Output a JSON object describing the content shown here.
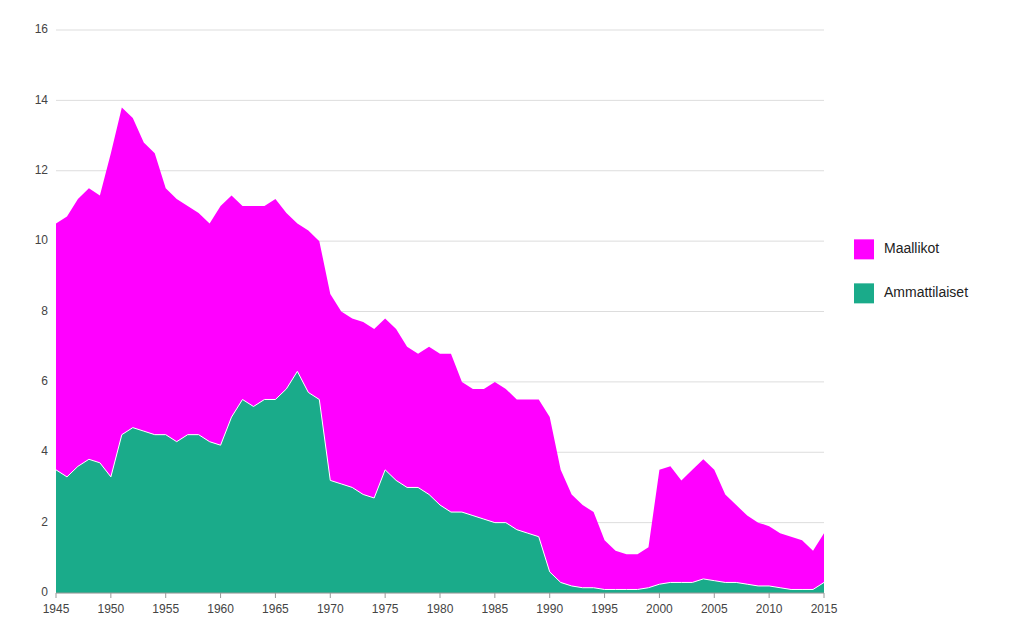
{
  "chart_data": {
    "type": "area",
    "x": [
      1945,
      1946,
      1947,
      1948,
      1949,
      1950,
      1951,
      1952,
      1953,
      1954,
      1955,
      1956,
      1957,
      1958,
      1959,
      1960,
      1961,
      1962,
      1963,
      1964,
      1965,
      1966,
      1967,
      1968,
      1969,
      1970,
      1971,
      1972,
      1973,
      1974,
      1975,
      1976,
      1977,
      1978,
      1979,
      1980,
      1981,
      1982,
      1983,
      1984,
      1985,
      1986,
      1987,
      1988,
      1989,
      1990,
      1991,
      1992,
      1993,
      1994,
      1995,
      1996,
      1997,
      1998,
      1999,
      2000,
      2001,
      2002,
      2003,
      2004,
      2005,
      2006,
      2007,
      2008,
      2009,
      2010,
      2011,
      2012,
      2013,
      2014,
      2015
    ],
    "series": [
      {
        "name": "Maallikot",
        "color": "#FF00FF",
        "values": [
          10.5,
          10.7,
          11.2,
          11.5,
          11.3,
          12.5,
          13.8,
          13.5,
          12.8,
          12.5,
          11.5,
          11.2,
          11.0,
          10.8,
          10.5,
          11.0,
          11.3,
          11.0,
          11.0,
          11.0,
          11.2,
          10.8,
          10.5,
          10.3,
          10.0,
          8.5,
          8.0,
          7.8,
          7.7,
          7.5,
          7.8,
          7.5,
          7.0,
          6.8,
          7.0,
          6.8,
          6.8,
          6.0,
          5.8,
          5.8,
          6.0,
          5.8,
          5.5,
          5.5,
          5.5,
          5.0,
          3.5,
          2.8,
          2.5,
          2.3,
          1.5,
          1.2,
          1.1,
          1.1,
          1.3,
          3.5,
          3.6,
          3.2,
          3.5,
          3.8,
          3.5,
          2.8,
          2.5,
          2.2,
          2.0,
          1.9,
          1.7,
          1.6,
          1.5,
          1.2,
          1.7
        ]
      },
      {
        "name": "Ammattilaiset",
        "color": "#1aab8a",
        "values": [
          3.5,
          3.3,
          3.6,
          3.8,
          3.7,
          3.3,
          4.5,
          4.7,
          4.6,
          4.5,
          4.5,
          4.3,
          4.5,
          4.5,
          4.3,
          4.2,
          5.0,
          5.5,
          5.3,
          5.5,
          5.5,
          5.8,
          6.3,
          5.7,
          5.5,
          3.2,
          3.1,
          3.0,
          2.8,
          2.7,
          3.5,
          3.2,
          3.0,
          3.0,
          2.8,
          2.5,
          2.3,
          2.3,
          2.2,
          2.1,
          2.0,
          2.0,
          1.8,
          1.7,
          1.6,
          0.6,
          0.3,
          0.2,
          0.15,
          0.15,
          0.1,
          0.1,
          0.1,
          0.1,
          0.15,
          0.25,
          0.3,
          0.3,
          0.3,
          0.4,
          0.35,
          0.3,
          0.3,
          0.25,
          0.2,
          0.2,
          0.15,
          0.1,
          0.1,
          0.1,
          0.3
        ]
      }
    ],
    "xlim": [
      1945,
      2015
    ],
    "xticks": [
      1945,
      1950,
      1955,
      1960,
      1965,
      1970,
      1975,
      1980,
      1985,
      1990,
      1995,
      2000,
      2005,
      2010,
      2015
    ],
    "ylim": [
      0,
      16
    ],
    "yticks": [
      0,
      2,
      4,
      6,
      8,
      10,
      12,
      14,
      16
    ],
    "grid": true,
    "legend": "right"
  }
}
